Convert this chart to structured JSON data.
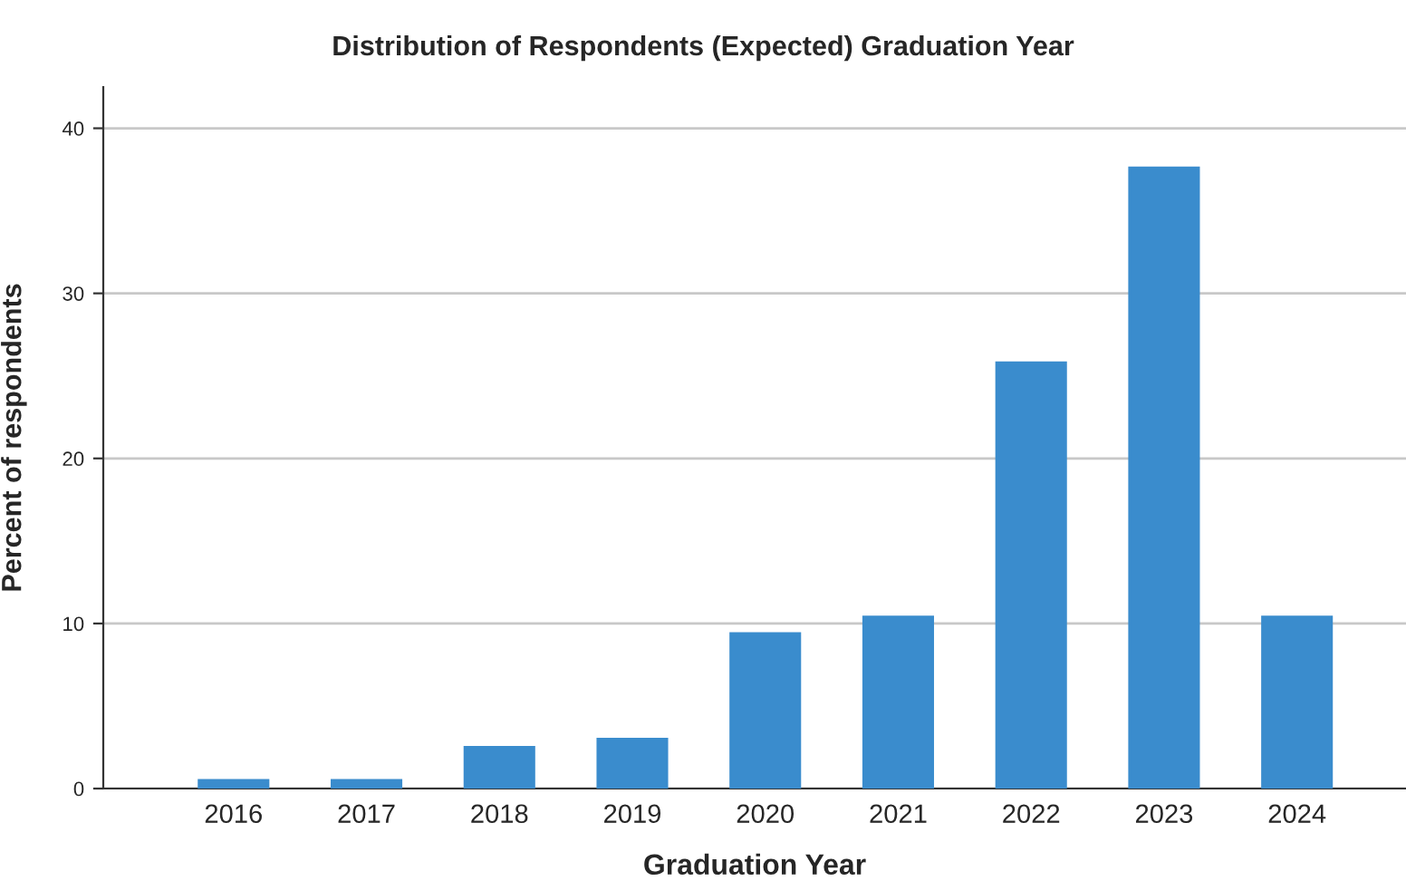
{
  "chart_data": {
    "type": "bar",
    "title": "Distribution of Respondents (Expected) Graduation Year",
    "xlabel": "Graduation Year",
    "ylabel": "Percent of respondents",
    "categories": [
      "2016",
      "2017",
      "2018",
      "2019",
      "2020",
      "2021",
      "2022",
      "2023",
      "2024"
    ],
    "values": [
      0.5,
      0.5,
      2.5,
      3.0,
      9.4,
      10.4,
      25.8,
      37.6,
      10.4
    ],
    "color": "#3a8ccd",
    "ylim": [
      0,
      42.5
    ],
    "yticks": [
      0,
      10,
      20,
      30,
      40
    ],
    "grid": "y"
  }
}
